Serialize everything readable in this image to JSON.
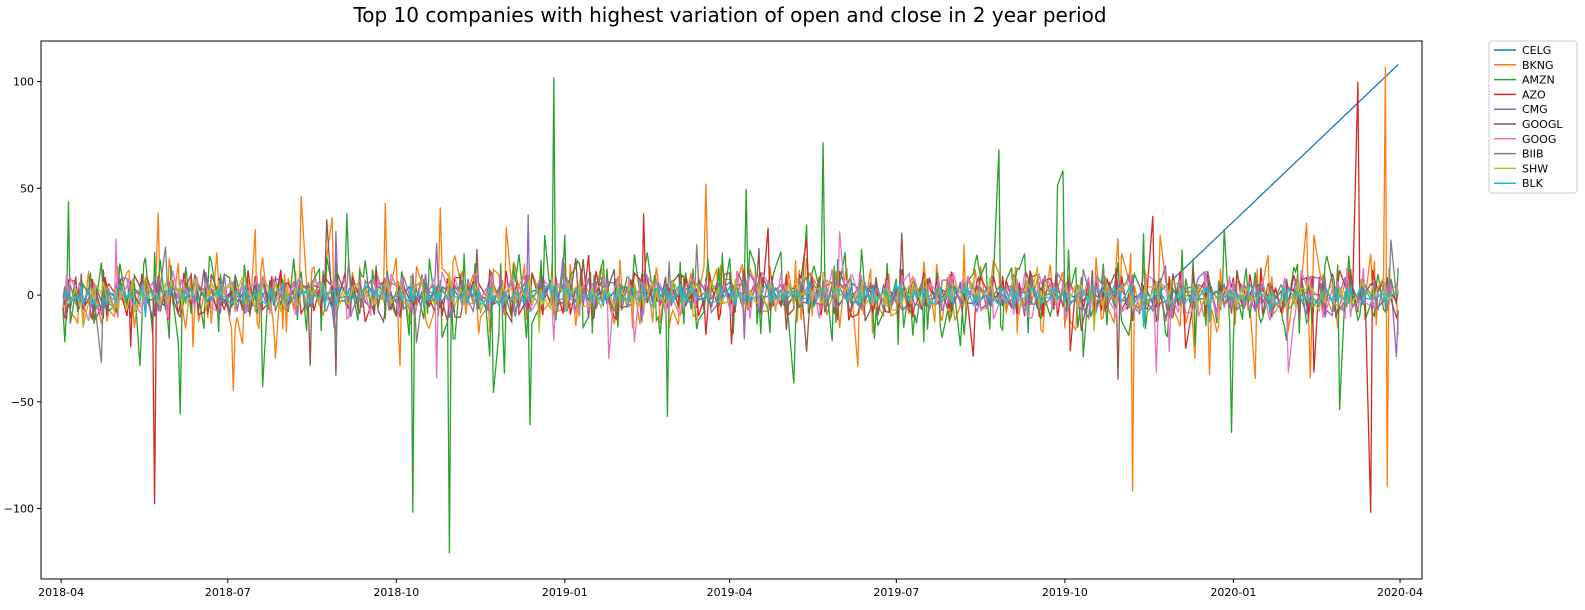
{
  "chart_data": {
    "type": "line",
    "title": "Top 10 companies with highest variation of open and close in 2 year period",
    "xlabel": "",
    "ylabel": "",
    "x_range": [
      "2018-03-21",
      "2020-04-13"
    ],
    "ylim": [
      -133,
      119
    ],
    "x_ticks": [
      "2018-04",
      "2018-07",
      "2018-10",
      "2019-01",
      "2019-04",
      "2019-07",
      "2019-10",
      "2020-01",
      "2020-04"
    ],
    "y_ticks": [
      100,
      50,
      0,
      -50,
      -100
    ],
    "grid": false,
    "legend_position": "outside-top-right",
    "series": [
      {
        "name": "CELG",
        "color": "#1f77b4",
        "amp": 4,
        "spike_rate": 0.01,
        "spike_amp": 10,
        "seed": 11,
        "end_date": "2019-11-20",
        "tail_to": 108
      },
      {
        "name": "BKNG",
        "color": "#ff7f0e",
        "amp": 14,
        "spike_rate": 0.06,
        "spike_amp": 45,
        "seed": 23
      },
      {
        "name": "AMZN",
        "color": "#2ca02c",
        "amp": 16,
        "spike_rate": 0.08,
        "spike_amp": 70,
        "seed": 37
      },
      {
        "name": "AZO",
        "color": "#d62728",
        "amp": 9,
        "spike_rate": 0.03,
        "spike_amp": 40,
        "seed": 41
      },
      {
        "name": "CMG",
        "color": "#9467bd",
        "amp": 8,
        "spike_rate": 0.03,
        "spike_amp": 30,
        "seed": 53
      },
      {
        "name": "GOOGL",
        "color": "#8c564b",
        "amp": 9,
        "spike_rate": 0.03,
        "spike_amp": 35,
        "seed": 67
      },
      {
        "name": "GOOG",
        "color": "#e377c2",
        "amp": 9,
        "spike_rate": 0.04,
        "spike_amp": 35,
        "seed": 71
      },
      {
        "name": "BIIB",
        "color": "#7f7f7f",
        "amp": 6,
        "spike_rate": 0.02,
        "spike_amp": 25,
        "seed": 83
      },
      {
        "name": "SHW",
        "color": "#bcbd22",
        "amp": 6,
        "spike_rate": 0.02,
        "spike_amp": 20,
        "seed": 97
      },
      {
        "name": "BLK",
        "color": "#17becf",
        "amp": 4,
        "spike_rate": 0.01,
        "spike_amp": 15,
        "seed": 101
      }
    ],
    "annotations": [
      {
        "series": "AMZN",
        "date": "2018-10-30",
        "value": -121
      },
      {
        "series": "AMZN",
        "date": "2018-12-26",
        "value": 102
      },
      {
        "series": "AMZN",
        "date": "2018-10-10",
        "value": -102
      },
      {
        "series": "AZO",
        "date": "2018-05-22",
        "value": -98
      },
      {
        "series": "AZO",
        "date": "2020-03-16",
        "value": -102
      },
      {
        "series": "AZO",
        "date": "2020-03-09",
        "value": 100
      },
      {
        "series": "BKNG",
        "date": "2019-11-07",
        "value": -92
      },
      {
        "series": "BKNG",
        "date": "2020-03-24",
        "value": 107
      },
      {
        "series": "BKNG",
        "date": "2020-03-25",
        "value": -90
      }
    ]
  }
}
